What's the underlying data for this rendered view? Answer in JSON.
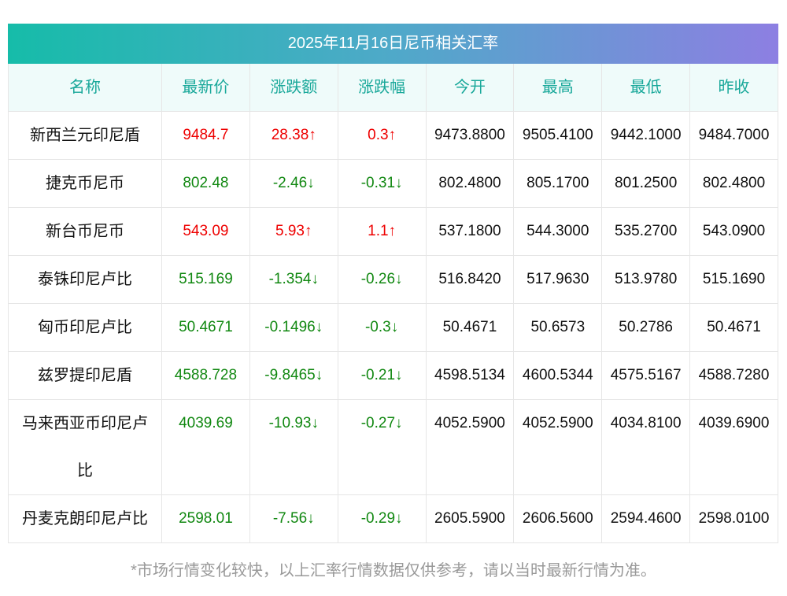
{
  "title": "2025年11月16日尼币相关汇率",
  "table": {
    "header": [
      "名称",
      "最新价",
      "涨跌额",
      "涨跌幅",
      "今开",
      "最高",
      "最低",
      "昨收"
    ],
    "rows": [
      {
        "color": "#ee0000",
        "cells": [
          "新西兰元印尼盾",
          "9484.7",
          "28.38↑",
          "0.3↑",
          "9473.8800",
          "9505.4100",
          "9442.1000",
          "9484.7000"
        ]
      },
      {
        "color": "#118811",
        "cells": [
          "捷克币尼币",
          "802.48",
          "-2.46↓",
          "-0.31↓",
          "802.4800",
          "805.1700",
          "801.2500",
          "802.4800"
        ]
      },
      {
        "color": "#ee0000",
        "cells": [
          "新台币尼币",
          "543.09",
          "5.93↑",
          "1.1↑",
          "537.1800",
          "544.3000",
          "535.2700",
          "543.0900"
        ]
      },
      {
        "color": "#118811",
        "cells": [
          "泰铢印尼卢比",
          "515.169",
          "-1.354↓",
          "-0.26↓",
          "516.8420",
          "517.9630",
          "513.9780",
          "515.1690"
        ]
      },
      {
        "color": "#118811",
        "cells": [
          "匈币印尼卢比",
          "50.4671",
          "-0.1496↓",
          "-0.3↓",
          "50.4671",
          "50.6573",
          "50.2786",
          "50.4671"
        ]
      },
      {
        "color": "#118811",
        "cells": [
          "兹罗提印尼盾",
          "4588.728",
          "-9.8465↓",
          "-0.21↓",
          "4598.5134",
          "4600.5344",
          "4575.5167",
          "4588.7280"
        ]
      },
      {
        "color": "#118811",
        "cells": [
          "马来西亚币印尼卢比",
          "4039.69",
          "-10.93↓",
          "-0.27↓",
          "4052.5900",
          "4052.5900",
          "4034.8100",
          "4039.6900"
        ]
      },
      {
        "color": "#118811",
        "cells": [
          "丹麦克朗印尼卢比",
          "2598.01",
          "-7.56↓",
          "-0.29↓",
          "2605.5900",
          "2606.5600",
          "2594.4600",
          "2598.0100"
        ]
      }
    ]
  },
  "footnote": "*市场行情变化较快，以上汇率行情数据仅供参考，请以当时最新行情为准。"
}
